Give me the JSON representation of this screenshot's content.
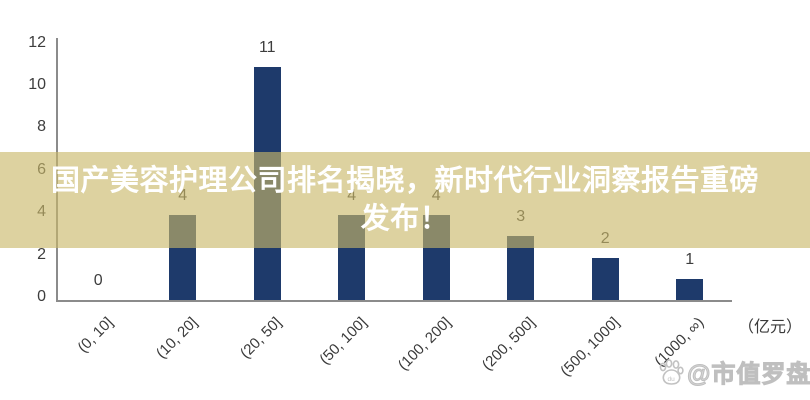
{
  "banner": {
    "line1": "国产美容护理公司排名揭晓，新时代行业洞察报告重磅",
    "line2": "发布！",
    "overlay_rgba": "rgba(201,184,104,0.63)",
    "text_color": "#FFFFFF"
  },
  "chart_data": {
    "type": "bar",
    "title": "",
    "categories": [
      "(0, 10]",
      "(10, 20]",
      "(20, 50]",
      "(50, 100]",
      "(100, 200]",
      "(200, 500]",
      "(500, 1000]",
      "(1000, ∞)"
    ],
    "values": [
      0,
      4,
      11,
      4,
      4,
      3,
      2,
      1
    ],
    "xlabel": "",
    "ylabel": "",
    "unit_label": "（亿元）",
    "ylim": [
      0,
      12
    ],
    "yticks": [
      0,
      2,
      4,
      6,
      8,
      10,
      12
    ],
    "bar_color": "#1E3A6B",
    "axis_color": "#8B8B8B",
    "tick_color": "#3D3D3D",
    "grid": false,
    "legend": false
  },
  "watermark": {
    "text": "@市值罗盘",
    "icon": "paw-icon",
    "icon_label": "du",
    "color": "#C4C4C4"
  }
}
